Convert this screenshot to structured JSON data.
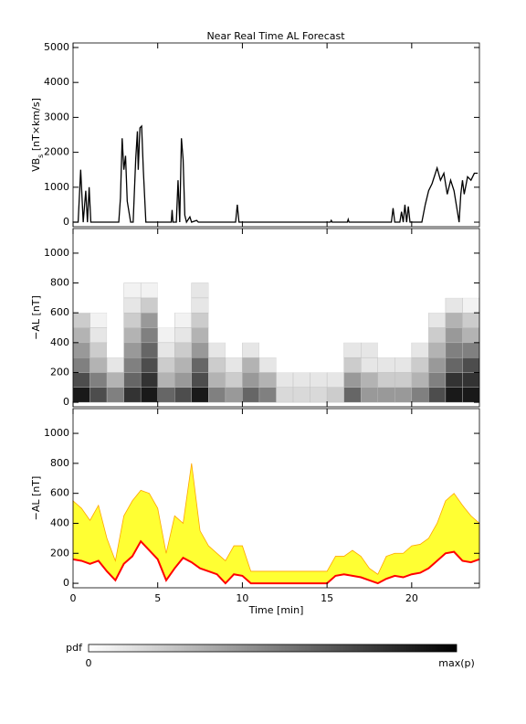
{
  "title": "Near Real Time AL Forecast",
  "chart_data": [
    {
      "type": "line",
      "ylabel": [
        "VB",
        "s",
        " [nT×km/s]"
      ],
      "color": "#000000",
      "x": [
        0,
        0.3,
        0.45,
        0.6,
        0.75,
        0.85,
        0.95,
        1.05,
        2.7,
        2.8,
        2.9,
        3.0,
        3.1,
        3.2,
        3.4,
        3.55,
        3.7,
        3.8,
        3.85,
        3.95,
        4.05,
        4.15,
        4.3,
        5.8,
        5.85,
        5.9,
        6.1,
        6.2,
        6.3,
        6.4,
        6.5,
        6.6,
        6.7,
        6.9,
        7.0,
        7.3,
        7.4,
        9.6,
        9.7,
        9.8,
        15.2,
        15.25,
        15.3,
        16.2,
        16.25,
        16.3,
        18.8,
        18.9,
        19.0,
        19.3,
        19.4,
        19.5,
        19.6,
        19.7,
        19.8,
        19.9,
        20.6,
        20.8,
        21.0,
        21.2,
        21.5,
        21.7,
        21.9,
        22.1,
        22.3,
        22.5,
        22.7,
        22.8,
        22.9,
        23.0,
        23.1,
        23.3,
        23.5,
        23.7,
        23.9
      ],
      "values": [
        0,
        0,
        1500,
        0,
        900,
        0,
        1000,
        0,
        0,
        700,
        2400,
        1500,
        1900,
        600,
        0,
        0,
        1800,
        2600,
        1500,
        2700,
        2750,
        1500,
        0,
        0,
        350,
        0,
        0,
        1200,
        0,
        2400,
        1800,
        200,
        0,
        150,
        0,
        50,
        0,
        0,
        500,
        0,
        0,
        50,
        0,
        0,
        80,
        0,
        0,
        400,
        0,
        0,
        300,
        0,
        500,
        0,
        450,
        0,
        0,
        500,
        900,
        1100,
        1550,
        1200,
        1400,
        800,
        1200,
        900,
        300,
        0,
        800,
        1200,
        800,
        1300,
        1200,
        1400,
        1400
      ],
      "xlim": [
        0,
        24
      ],
      "xticks": [
        0,
        5,
        10,
        15,
        20
      ],
      "ylim": [
        -130,
        5130
      ],
      "yticks": [
        0,
        1000,
        2000,
        3000,
        4000,
        5000
      ]
    },
    {
      "type": "heatmap",
      "ylabel": "−AL [nT]",
      "xbins": [
        0,
        1,
        2,
        3,
        4,
        5,
        6,
        7,
        8,
        9,
        10,
        11,
        12,
        13,
        14,
        15,
        16,
        17,
        18,
        19,
        20,
        21,
        22,
        23,
        24
      ],
      "ybins": [
        0,
        100,
        200,
        300,
        400,
        500,
        600,
        700,
        800
      ],
      "z": [
        [
          0.9,
          0.7,
          0.5,
          0.8,
          0.9,
          0.6,
          0.7,
          0.9,
          0.5,
          0.4,
          0.6,
          0.5,
          0.15,
          0.15,
          0.15,
          0.2,
          0.6,
          0.4,
          0.4,
          0.4,
          0.5,
          0.7,
          0.9,
          0.9
        ],
        [
          0.7,
          0.5,
          0.3,
          0.6,
          0.8,
          0.3,
          0.4,
          0.7,
          0.3,
          0.2,
          0.4,
          0.3,
          0.1,
          0.1,
          0.1,
          0.1,
          0.4,
          0.3,
          0.2,
          0.2,
          0.3,
          0.5,
          0.8,
          0.8
        ],
        [
          0.5,
          0.3,
          0.1,
          0.5,
          0.7,
          0.2,
          0.3,
          0.6,
          0.2,
          0.1,
          0.3,
          0.1,
          0,
          0,
          0,
          0,
          0.2,
          0.1,
          0.1,
          0.1,
          0.2,
          0.4,
          0.6,
          0.7
        ],
        [
          0.4,
          0.2,
          0,
          0.4,
          0.6,
          0.1,
          0.2,
          0.4,
          0.1,
          0,
          0.1,
          0,
          0,
          0,
          0,
          0,
          0.1,
          0.1,
          0,
          0,
          0.1,
          0.3,
          0.5,
          0.5
        ],
        [
          0.3,
          0.1,
          0,
          0.3,
          0.5,
          0.05,
          0.1,
          0.3,
          0,
          0,
          0,
          0,
          0,
          0,
          0,
          0,
          0,
          0,
          0,
          0,
          0,
          0.2,
          0.4,
          0.3
        ],
        [
          0.2,
          0.05,
          0,
          0.2,
          0.4,
          0,
          0.05,
          0.2,
          0,
          0,
          0,
          0,
          0,
          0,
          0,
          0,
          0,
          0,
          0,
          0,
          0,
          0.1,
          0.3,
          0.2
        ],
        [
          0,
          0,
          0,
          0.1,
          0.2,
          0,
          0,
          0.1,
          0,
          0,
          0,
          0,
          0,
          0,
          0,
          0,
          0,
          0,
          0,
          0,
          0,
          0,
          0.1,
          0.05
        ],
        [
          0,
          0,
          0,
          0.05,
          0.05,
          0,
          0,
          0.1,
          0,
          0,
          0,
          0,
          0,
          0,
          0,
          0,
          0,
          0,
          0,
          0,
          0,
          0,
          0,
          0
        ]
      ],
      "xlim": [
        0,
        24
      ],
      "xticks": [
        0,
        5,
        10,
        15,
        20
      ],
      "ylim": [
        -30,
        1165
      ],
      "yticks": [
        0,
        200,
        400,
        600,
        800,
        1000
      ]
    },
    {
      "type": "band",
      "ylabel": "−AL [nT]",
      "xlabel": "Time [min]",
      "x": [
        0,
        0.5,
        1,
        1.5,
        2,
        2.5,
        3,
        3.5,
        4,
        4.5,
        5,
        5.5,
        6,
        6.5,
        7,
        7.5,
        8,
        8.5,
        9,
        9.5,
        10,
        10.5,
        11,
        11.5,
        12,
        12.5,
        13,
        13.5,
        14,
        14.5,
        15,
        15.5,
        16,
        16.5,
        17,
        17.5,
        18,
        18.5,
        19,
        19.5,
        20,
        20.5,
        21,
        21.5,
        22,
        22.5,
        23,
        23.5,
        24
      ],
      "series": [
        {
          "color": "#ffff33",
          "values": [
            550,
            500,
            420,
            520,
            300,
            150,
            450,
            550,
            620,
            600,
            500,
            200,
            450,
            400,
            800,
            350,
            250,
            200,
            150,
            250,
            250,
            80,
            80,
            80,
            80,
            80,
            80,
            80,
            80,
            80,
            80,
            180,
            180,
            220,
            180,
            100,
            60,
            180,
            200,
            200,
            250,
            260,
            300,
            400,
            550,
            600,
            520,
            450,
            400
          ]
        },
        {
          "color": "#ff0000",
          "values": [
            160,
            150,
            130,
            150,
            80,
            20,
            130,
            180,
            280,
            220,
            160,
            20,
            100,
            170,
            140,
            100,
            80,
            60,
            0,
            60,
            50,
            0,
            0,
            0,
            0,
            0,
            0,
            0,
            0,
            0,
            0,
            50,
            60,
            50,
            40,
            20,
            0,
            30,
            50,
            40,
            60,
            70,
            100,
            150,
            200,
            210,
            150,
            140,
            160
          ]
        }
      ],
      "xlim": [
        0,
        24
      ],
      "xticks": [
        0,
        5,
        10,
        15,
        20
      ],
      "ylim": [
        -30,
        1165
      ],
      "yticks": [
        0,
        200,
        400,
        600,
        800,
        1000
      ]
    }
  ],
  "colorbar": {
    "label": "pdf",
    "min_label": "0",
    "max_label": "max(p)"
  }
}
